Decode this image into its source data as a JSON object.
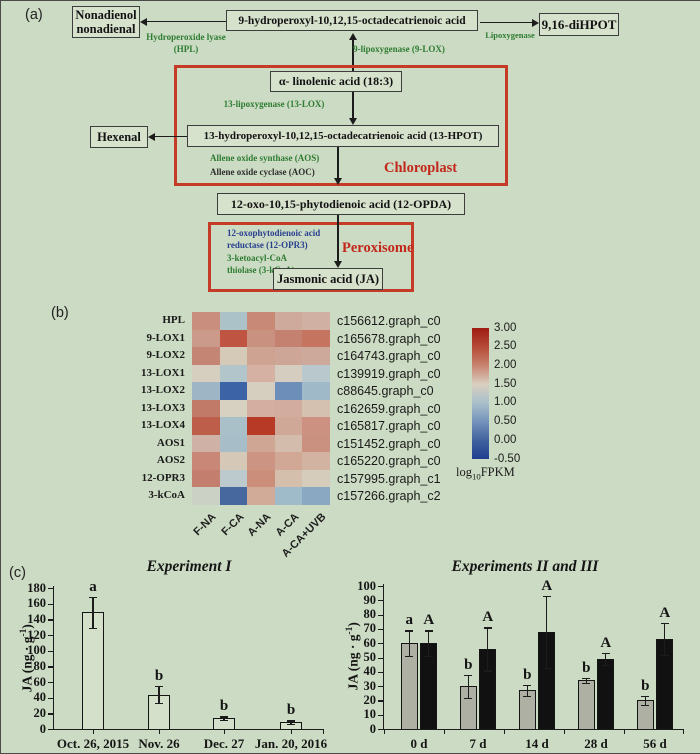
{
  "figure": {
    "panel_a": {
      "label": "(a)",
      "boxes": {
        "nonadienol_line1": "Nonadienol",
        "nonadienol_line2": "nonadienal",
        "hydroperoxyl9": "9-hydroperoxyl-10,12,15-octadecatrienoic acid",
        "dihpot": "9,16-diHPOT",
        "linolenic": "α- linolenic acid (18:3)",
        "hpot13": "13-hydroperoxyl-10,12,15-octadecatrienoic acid (13-HPOT)",
        "hexenal": "Hexenal",
        "opda": "12-oxo-10,15-phytodienoic acid (12-OPDA)",
        "ja": "Jasmonic acid (JA)"
      },
      "enzymes": {
        "hpl_line1": "Hydroperoxide lyase",
        "hpl_line2": "(HPL)",
        "lipoxygenase": "Lipoxygenase",
        "lox9": "9-lipoxygenase (9-LOX)",
        "lox13": "13-lipoxygenase (13-LOX)",
        "aos": "Allene oxide synthase (AOS)",
        "aoc": "Allene oxide cyclase (AOC)",
        "opr3_line1": "12-oxophytodienoic acid",
        "opr3_line2": "reductase (12-OPR3)",
        "kcoa_line1": "3-ketoacyl-CoA",
        "kcoa_line2": "thiolase (3-kCoA)"
      },
      "compartments": {
        "chloroplast": "Chloroplast",
        "peroxisome": "Peroxisome"
      }
    },
    "panel_b": {
      "label": "(b)"
    },
    "panel_c": {
      "label": "(c)"
    }
  },
  "chart_data": [
    {
      "type": "heatmap",
      "rows": [
        "HPL",
        "9-LOX1",
        "9-LOX2",
        "13-LOX1",
        "13-LOX2",
        "13-LOX3",
        "13-LOX4",
        "AOS1",
        "AOS2",
        "12-OPR3",
        "3-kCoA"
      ],
      "transcripts": [
        "c156612.graph_c0",
        "c165678.graph_c0",
        "c164743.graph_c0",
        "c139919.graph_c0",
        "c88645.graph_c0",
        "c162659.graph_c0",
        "c165817.graph_c0",
        "c151452.graph_c0",
        "c165220.graph_c0",
        "c157995.graph_c1",
        "c157266.graph_c2"
      ],
      "columns": [
        "F-NA",
        "F-CA",
        "A-NA",
        "A-CA",
        "A-CA+UVB"
      ],
      "units": "log10FPKM",
      "values": [
        [
          2.0,
          1.0,
          2.05,
          1.8,
          1.75
        ],
        [
          1.95,
          2.7,
          2.0,
          2.2,
          2.3
        ],
        [
          2.15,
          1.5,
          1.9,
          1.85,
          1.8
        ],
        [
          1.5,
          1.05,
          1.8,
          1.5,
          1.1
        ],
        [
          0.8,
          0.0,
          1.5,
          0.45,
          0.85
        ],
        [
          2.25,
          1.5,
          1.8,
          1.8,
          1.65
        ],
        [
          2.55,
          0.95,
          3.0,
          1.8,
          2.0
        ],
        [
          1.7,
          0.9,
          1.9,
          1.7,
          2.1
        ],
        [
          2.1,
          1.5,
          2.0,
          1.85,
          1.75
        ],
        [
          2.2,
          1.2,
          2.1,
          1.65,
          1.5
        ],
        [
          1.4,
          0.3,
          1.85,
          0.85,
          0.6
        ]
      ],
      "cell_colors": [
        [
          "#c98e7e",
          "#abc2c9",
          "#c88a77",
          "#cdaa9c",
          "#cfb0a3"
        ],
        [
          "#cb9a8a",
          "#bf5443",
          "#c89180",
          "#c48170",
          "#c5755f"
        ],
        [
          "#c48574",
          "#d5cab8",
          "#cfa392",
          "#cda698",
          "#cda99c"
        ],
        [
          "#d6cebf",
          "#b2c5cb",
          "#d4b1a3",
          "#d5cdbf",
          "#b8c8cc"
        ],
        [
          "#9db5c5",
          "#3c63a5",
          "#d6cfbf",
          "#6e8eba",
          "#a0b9c8"
        ],
        [
          "#c27a68",
          "#d6d1c1",
          "#d4afa1",
          "#d2ad9f",
          "#d5c1b0"
        ],
        [
          "#bd5e4b",
          "#a9c0c9",
          "#b73a27",
          "#d0a897",
          "#cd9182"
        ],
        [
          "#cfb2a5",
          "#a7bec9",
          "#cfa593",
          "#d3bcab",
          "#ca9080"
        ],
        [
          "#c88777",
          "#d5c8b6",
          "#cb9483",
          "#d1a896",
          "#d2b2a1"
        ],
        [
          "#c37e6d",
          "#bccacd",
          "#ca8e7b",
          "#d4bfad",
          "#d6ccbb"
        ],
        [
          "#cbd2c5",
          "#47689f",
          "#d2aa98",
          "#9fbbc9",
          "#8ba8c2"
        ]
      ],
      "colorbar": {
        "ticks": [
          "3.00",
          "2.50",
          "2.00",
          "1.50",
          "1.00",
          "0.50",
          "0.00",
          "-0.50"
        ],
        "label": "log10FPKM",
        "gradient": [
          "#9e1c12",
          "#b54936",
          "#c8836f",
          "#d9cfc0",
          "#a9c0cb",
          "#7492bb",
          "#41629f",
          "#1e3f8f"
        ]
      }
    },
    {
      "type": "bar",
      "title": "Experiment I",
      "ylabel": "JA (ng · g-1)",
      "ylim": [
        0,
        180
      ],
      "ytick_step": 20,
      "categories": [
        "Oct. 26, 2015",
        "Nov. 26",
        "Dec. 27",
        "Jan. 20, 2016"
      ],
      "values": [
        149,
        44,
        14,
        9
      ],
      "errors": [
        20,
        11,
        2,
        2
      ],
      "letters": [
        "a",
        "b",
        "b",
        "b"
      ],
      "bar_fill": "#d5e0ca"
    },
    {
      "type": "bar",
      "title": "Experiments II and III",
      "ylabel": "JA (ng · g-1)",
      "ylim": [
        0,
        100
      ],
      "ytick_step": 10,
      "categories": [
        "0 d",
        "7 d",
        "14 d",
        "28 d",
        "56 d"
      ],
      "series": [
        {
          "color": "#adb0a2",
          "values": [
            60,
            30,
            27,
            34,
            20
          ],
          "errors": [
            9,
            8,
            4,
            2,
            3
          ],
          "letters": [
            "a",
            "b",
            "b",
            "b",
            "b"
          ]
        },
        {
          "color": "#111111",
          "values": [
            60,
            56,
            68,
            49,
            63
          ],
          "errors": [
            9,
            15,
            25,
            4,
            11
          ],
          "letters": [
            "A",
            "A",
            "A",
            "A",
            "A"
          ]
        }
      ]
    }
  ],
  "colors": {
    "background": "#ccdbc3",
    "box_fill": "#d7e2cd",
    "red_accent": "#c63b28",
    "enzyme_green": "#2e7c33",
    "enzyme_blue": "#28418f",
    "compartment_red": "#c3271b",
    "bar_gray": "#adb0a2",
    "bar_black": "#111111",
    "bar_white": "#d5e0ca"
  }
}
